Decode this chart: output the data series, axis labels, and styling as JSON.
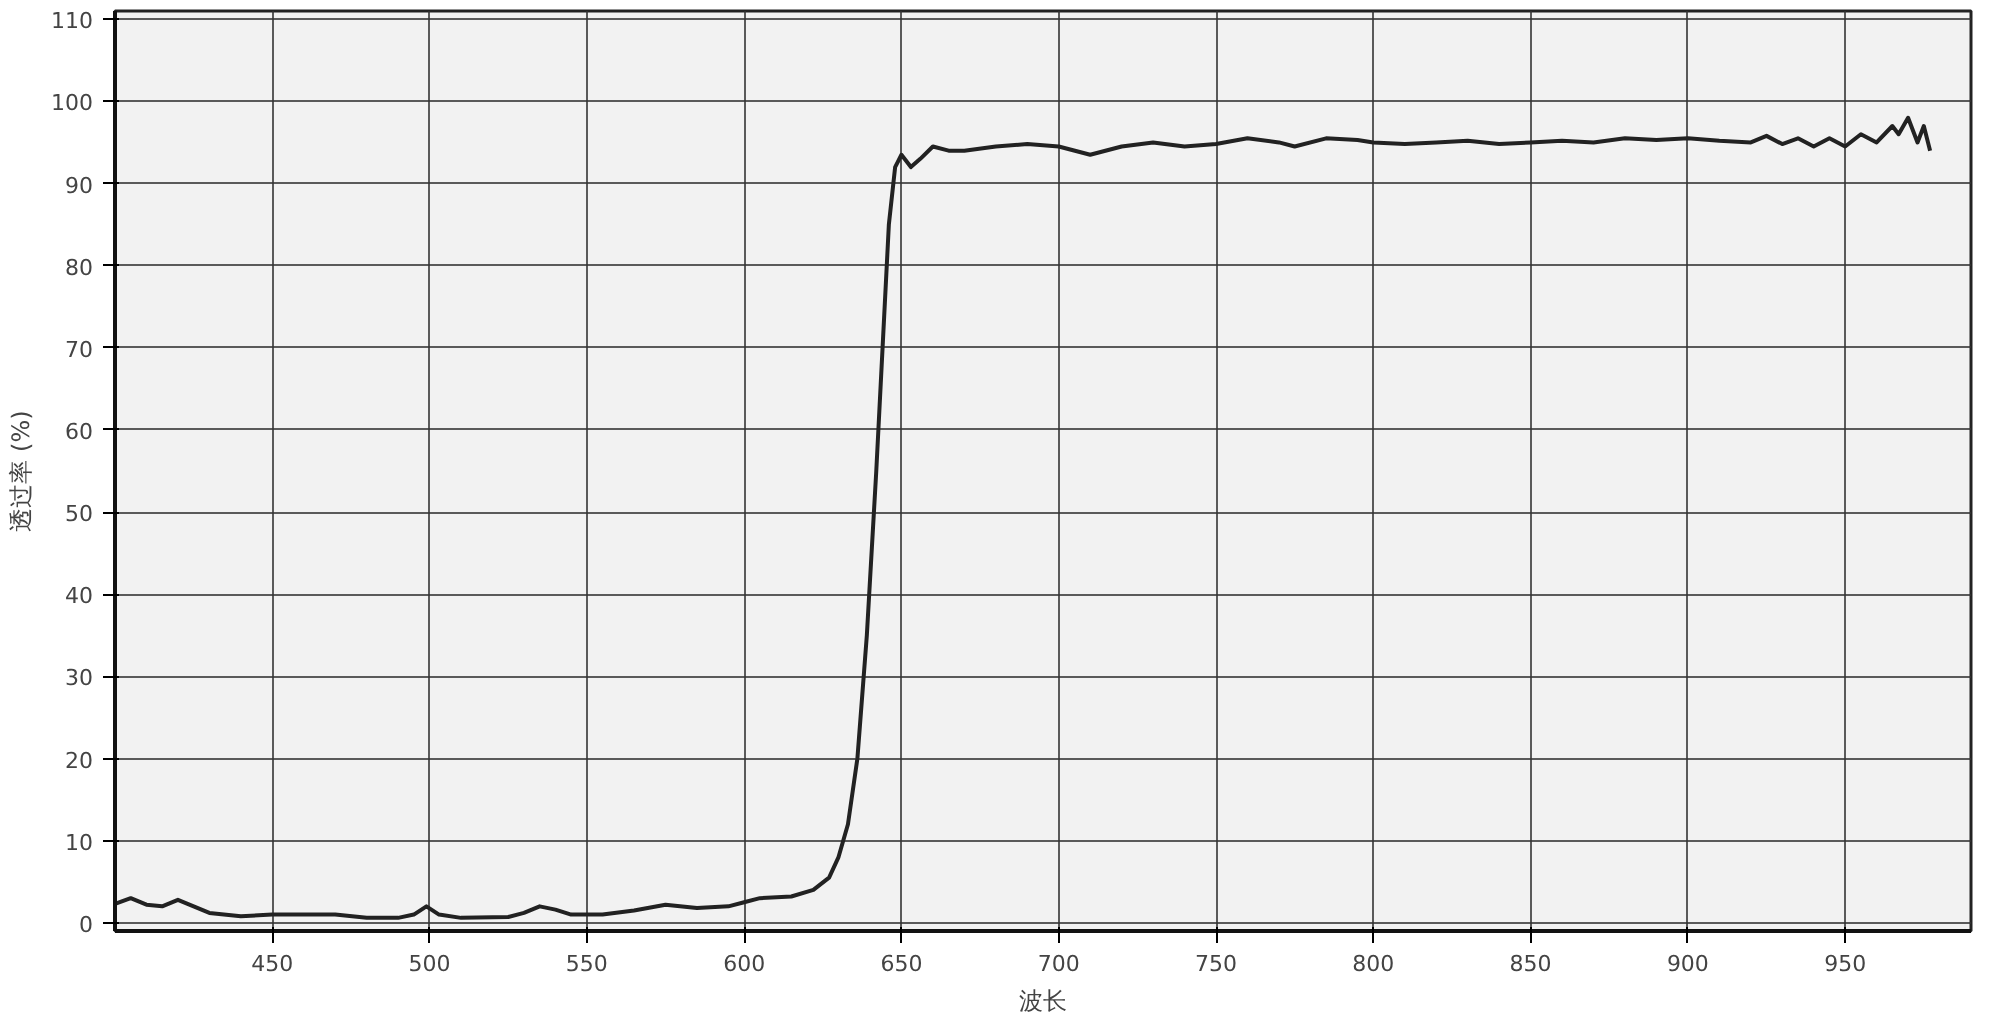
{
  "chart_data": {
    "type": "line",
    "xlabel": "波长",
    "ylabel": "透过率 (%)",
    "xlim": [
      400,
      990
    ],
    "ylim": [
      -1,
      111
    ],
    "xticks": [
      450,
      500,
      550,
      600,
      650,
      700,
      750,
      800,
      850,
      900,
      950
    ],
    "yticks": [
      0,
      10,
      20,
      30,
      40,
      50,
      60,
      70,
      80,
      90,
      100,
      110
    ],
    "grid": true,
    "marker": "none",
    "line_style": "solid",
    "series": [
      {
        "color": "#222222",
        "x": [
          400,
          405,
          410,
          415,
          420,
          425,
          430,
          440,
          450,
          460,
          470,
          480,
          490,
          495,
          499,
          503,
          510,
          525,
          530,
          535,
          540,
          545,
          555,
          565,
          575,
          585,
          595,
          600,
          605,
          615,
          622,
          627,
          630,
          633,
          636,
          639,
          642,
          644,
          646,
          648,
          650,
          653,
          656,
          660,
          665,
          670,
          680,
          690,
          700,
          710,
          720,
          730,
          740,
          750,
          760,
          770,
          775,
          785,
          795,
          800,
          810,
          820,
          830,
          840,
          850,
          860,
          870,
          880,
          890,
          900,
          910,
          920,
          925,
          930,
          935,
          940,
          945,
          950,
          955,
          960,
          965,
          967,
          970,
          973,
          975,
          977
        ],
        "values": [
          2.3,
          3,
          2.2,
          2,
          2.8,
          2,
          1.2,
          0.8,
          1,
          1,
          1,
          0.6,
          0.6,
          1,
          2,
          1,
          0.6,
          0.7,
          1.2,
          2,
          1.6,
          1,
          1,
          1.5,
          2.2,
          1.8,
          2,
          2.5,
          3,
          3.2,
          4,
          5.5,
          8,
          12,
          20,
          35,
          55,
          70,
          85,
          92,
          93.5,
          92,
          93,
          94.5,
          94,
          94,
          94.5,
          94.8,
          94.5,
          93.5,
          94.5,
          95,
          94.5,
          94.8,
          95.5,
          95,
          94.5,
          95.5,
          95.3,
          95,
          94.8,
          95,
          95.2,
          94.8,
          95,
          95.2,
          95,
          95.5,
          95.3,
          95.5,
          95.2,
          95,
          95.8,
          94.8,
          95.5,
          94.5,
          95.5,
          94.5,
          96,
          95,
          97,
          96,
          98,
          95,
          97,
          94
        ]
      }
    ]
  }
}
